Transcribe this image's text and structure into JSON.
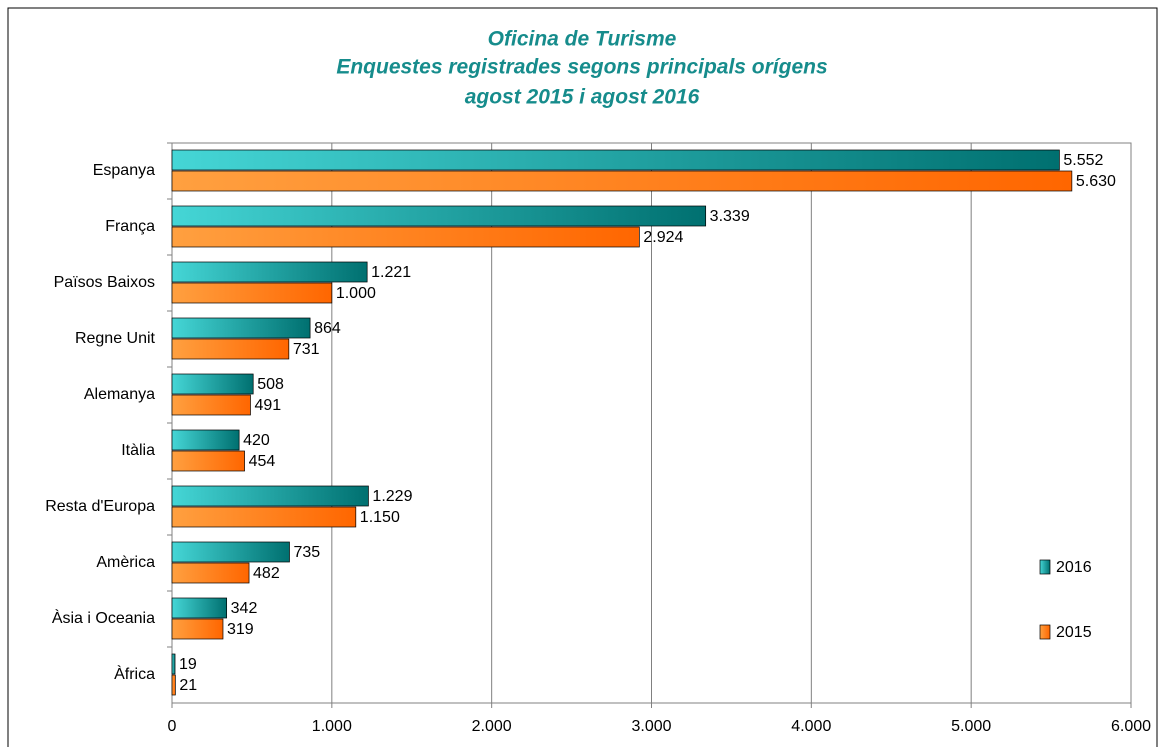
{
  "chart_data": {
    "type": "hbar",
    "title": [
      "Oficina de Turisme",
      "Enquestes registrades segons principals orígens",
      "agost 2015 i agost 2016"
    ],
    "categories": [
      "Espanya",
      "França",
      "Països Baixos",
      "Regne Unit",
      "Alemanya",
      "Itàlia",
      "Resta d'Europa",
      "Amèrica",
      "Àsia i Oceania",
      "Àfrica"
    ],
    "series": [
      {
        "name": "2016",
        "color": [
          "#45d6d6",
          "#007070"
        ],
        "values": [
          5552,
          3339,
          1221,
          864,
          508,
          420,
          1229,
          735,
          342,
          19
        ],
        "value_labels": [
          "5.552",
          "3.339",
          "1.221",
          "864",
          "508",
          "420",
          "1.229",
          "735",
          "342",
          "19"
        ]
      },
      {
        "name": "2015",
        "color": [
          "#ffa040",
          "#ff6600"
        ],
        "values": [
          5630,
          2924,
          1000,
          731,
          491,
          454,
          1150,
          482,
          319,
          21
        ],
        "value_labels": [
          "5.630",
          "2.924",
          "1.000",
          "731",
          "491",
          "454",
          "1.150",
          "482",
          "319",
          "21"
        ]
      }
    ],
    "xlim": [
      0,
      6000
    ],
    "xticks": [
      0,
      {
        "value": 1000,
        "label": "1.000"
      },
      {
        "value": 2000,
        "label": "2.000"
      },
      {
        "value": 3000,
        "label": "3.000"
      },
      {
        "value": 4000,
        "label": "4.000"
      },
      {
        "value": 5000,
        "label": "5.000"
      },
      {
        "value": 6000,
        "label": "6.000"
      }
    ],
    "grid": true
  }
}
